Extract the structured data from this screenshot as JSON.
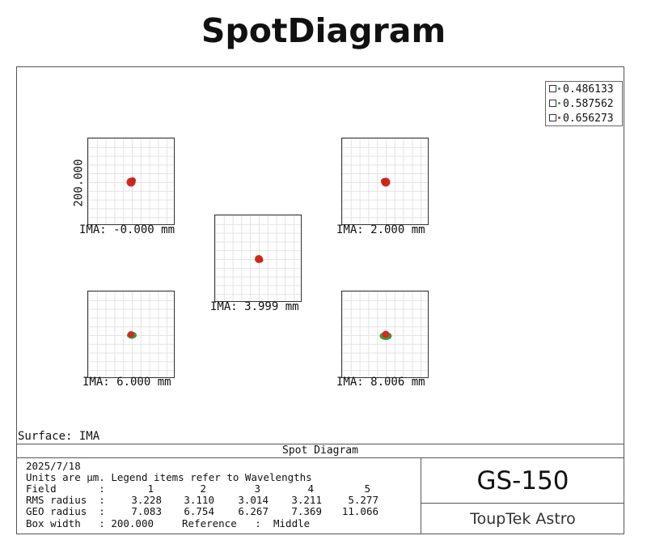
{
  "title": "SpotDiagram",
  "legend": [
    {
      "label": "0.486133",
      "color": "#4472c4"
    },
    {
      "label": "0.587562",
      "color": "#3c9a3c"
    },
    {
      "label": "0.656273",
      "color": "#d22a20"
    }
  ],
  "axis_label": "200.000",
  "fields": [
    {
      "label": "IMA: -0.000 mm"
    },
    {
      "label": "IMA: 2.000 mm"
    },
    {
      "label": "IMA: 3.999 mm"
    },
    {
      "label": "IMA: 6.000 mm"
    },
    {
      "label": "IMA: 8.006 mm"
    }
  ],
  "surface": "Surface: IMA",
  "panel_title": "Spot Diagram",
  "info": {
    "date": "2025/7/18",
    "units_note": "Units are µm. Legend items refer to Wavelengths",
    "field_label": "Field       :",
    "field_numbers": [
      "1",
      "2",
      "3",
      "4",
      "5"
    ],
    "rms_label": "RMS radius  :",
    "rms_values": [
      "3.228",
      "3.110",
      "3.014",
      "3.211",
      "5.277"
    ],
    "geo_label": "GEO radius  :",
    "geo_values": [
      "7.083",
      "6.754",
      "6.267",
      "7.369",
      "11.066"
    ],
    "box_width_label": "Box width   :",
    "box_width_value": "200.000",
    "reference_label": "Reference   :",
    "reference_value": "Middle"
  },
  "product": "GS-150",
  "brand": "ToupTek Astro",
  "colors": {
    "spot": "#d22a20",
    "spot_green": "#3c9a3c",
    "grid": "#e3e3e3"
  }
}
